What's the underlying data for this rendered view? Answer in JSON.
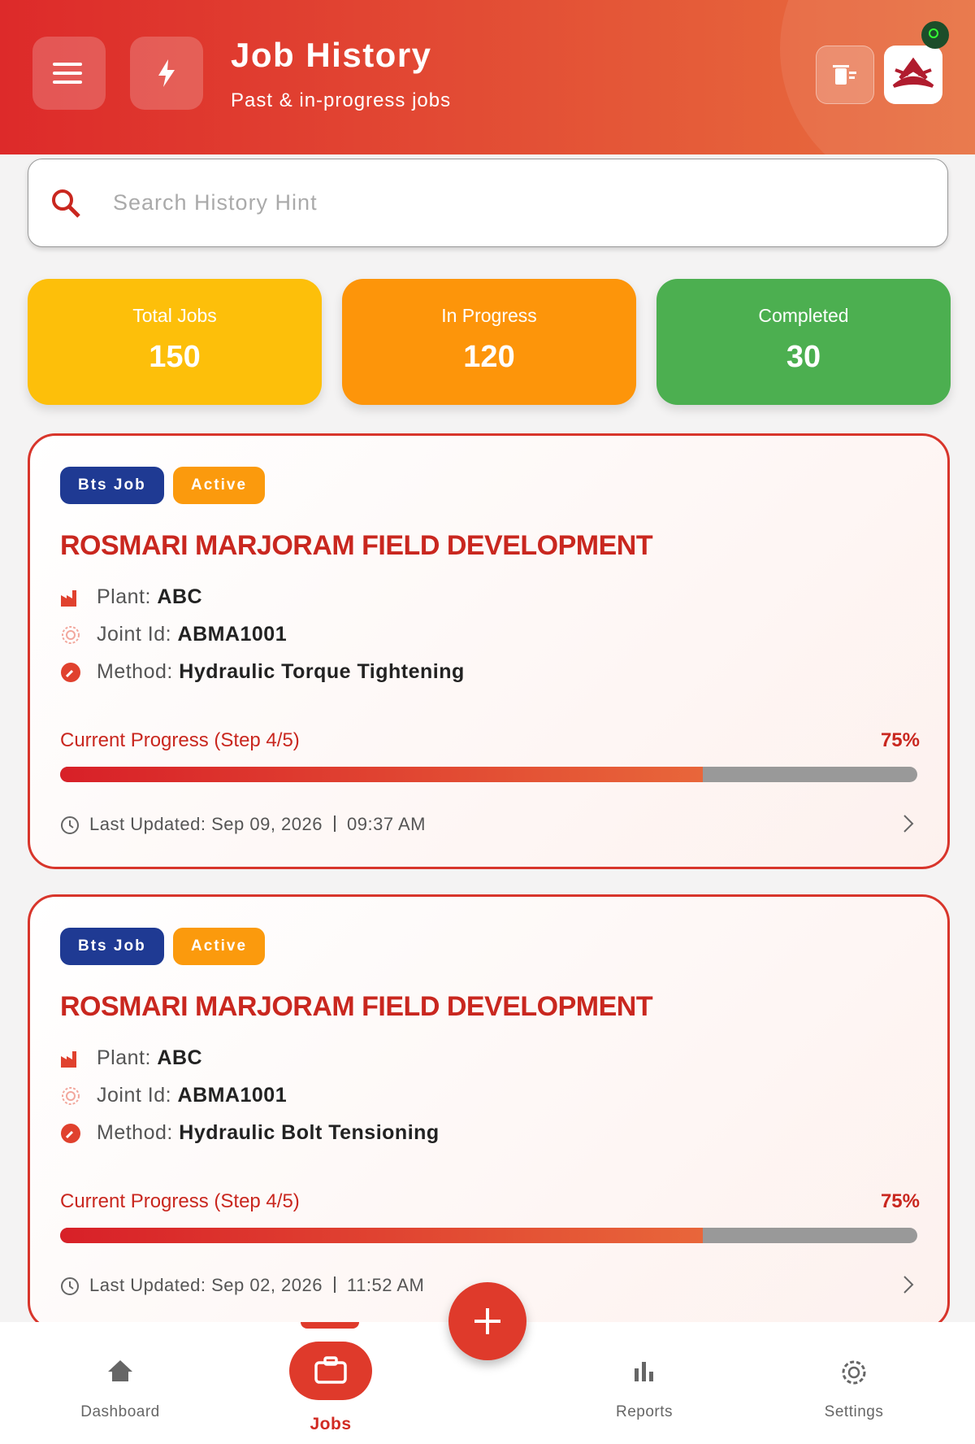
{
  "header": {
    "title": "Job History",
    "subtitle": "Past & in-progress jobs"
  },
  "search": {
    "placeholder": "Search History Hint"
  },
  "stats": [
    {
      "label": "Total Jobs",
      "value": 150
    },
    {
      "label": "In Progress",
      "value": 120
    },
    {
      "label": "Completed",
      "value": 30
    }
  ],
  "jobs": [
    {
      "tags": [
        "Bts Job",
        "Active"
      ],
      "title": "ROSMARI MARJORAM FIELD DEVELOPMENT",
      "plant_label": "Plant:",
      "plant": "ABC",
      "joint_label": "Joint Id:",
      "joint": "ABMA1001",
      "method_label": "Method:",
      "method": "Hydraulic Torque Tightening",
      "progress_text": "Current Progress (Step 4/5)",
      "progress": 75,
      "progress_label": "75%",
      "updated_label": "Last Updated:",
      "date": "Sep 09, 2026",
      "time": "09:37 AM"
    },
    {
      "tags": [
        "Bts Job",
        "Active"
      ],
      "title": "ROSMARI MARJORAM FIELD DEVELOPMENT",
      "plant_label": "Plant:",
      "plant": "ABC",
      "joint_label": "Joint Id:",
      "joint": "ABMA1001",
      "method_label": "Method:",
      "method": "Hydraulic Bolt Tensioning",
      "progress_text": "Current Progress (Step 4/5)",
      "progress": 75,
      "progress_label": "75%",
      "updated_label": "Last Updated:",
      "date": "Sep 02, 2026",
      "time": "11:52 AM"
    }
  ],
  "nav": [
    "Dashboard",
    "Jobs",
    "Reports",
    "Settings"
  ]
}
